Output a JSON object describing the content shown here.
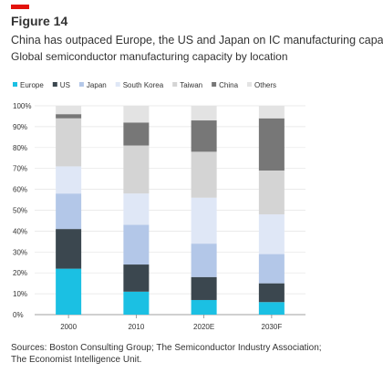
{
  "chart_data": {
    "type": "stacked_bar",
    "figure_label": "Figure 14",
    "title": "China has outpaced Europe, the US and Japan on IC manufacturing capacity",
    "subtitle": "Global semiconductor manufacturing capacity by location",
    "categories": [
      "2000",
      "2010",
      "2020E",
      "2030F"
    ],
    "series": [
      {
        "name": "Europe",
        "color": "#1bc0e3",
        "values": [
          22,
          11,
          7,
          6
        ]
      },
      {
        "name": "US",
        "color": "#3b474f",
        "values": [
          19,
          13,
          11,
          9
        ]
      },
      {
        "name": "Japan",
        "color": "#b3c7e8",
        "values": [
          17,
          19,
          16,
          14
        ]
      },
      {
        "name": "South Korea",
        "color": "#dfe7f6",
        "values": [
          13,
          15,
          22,
          19
        ]
      },
      {
        "name": "Taiwan",
        "color": "#d4d4d4",
        "values": [
          23,
          23,
          22,
          21
        ]
      },
      {
        "name": "China",
        "color": "#777777",
        "values": [
          2,
          11,
          15,
          25
        ]
      },
      {
        "name": "Others",
        "color": "#e3e3e3",
        "values": [
          4,
          8,
          7,
          6
        ]
      }
    ],
    "ylim": [
      0,
      100
    ],
    "yticks": [
      {
        "value": 0,
        "label": "0%"
      },
      {
        "value": 10,
        "label": "10%"
      },
      {
        "value": 20,
        "label": "20%"
      },
      {
        "value": 30,
        "label": "30%"
      },
      {
        "value": 40,
        "label": "40%"
      },
      {
        "value": 50,
        "label": "50%"
      },
      {
        "value": 60,
        "label": "60%"
      },
      {
        "value": 70,
        "label": "70%"
      },
      {
        "value": 80,
        "label": "80%"
      },
      {
        "value": 90,
        "label": "90%"
      },
      {
        "value": 100,
        "label": "100%"
      }
    ],
    "grid": true,
    "source": [
      "Sources: Boston Consulting Group; The Semiconductor Industry Association;",
      "The Economist Intelligence Unit."
    ]
  }
}
